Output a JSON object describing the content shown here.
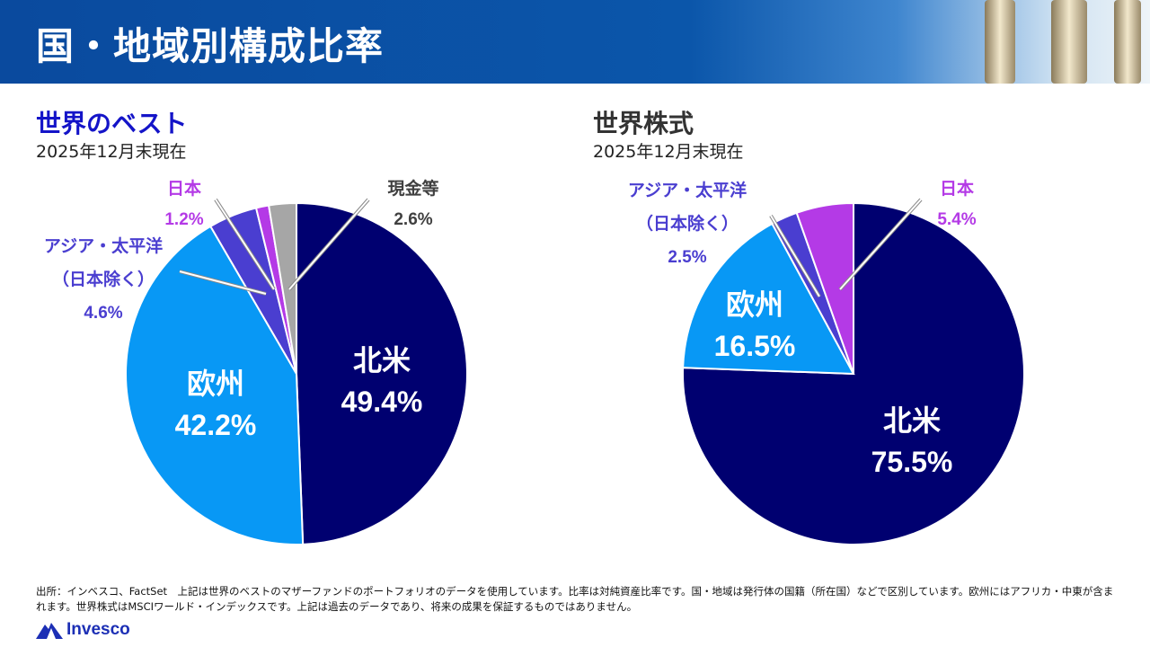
{
  "header": {
    "title": "国・地域別構成比率"
  },
  "left": {
    "title": "世界のベスト",
    "date": "2025年12月末現在"
  },
  "right": {
    "title": "世界株式",
    "date": "2025年12月末現在"
  },
  "colors": {
    "north_america": "#000070",
    "europe": "#0898f5",
    "asia_pacific": "#4a3ed0",
    "japan": "#b43ae6",
    "cash": "#a6a6a6",
    "title_blue": "#1414c8"
  },
  "chart_data": [
    {
      "type": "pie",
      "title": "世界のベスト",
      "start": "top",
      "direction": "clockwise",
      "slices": [
        {
          "label": "北米",
          "value": 49.4,
          "display": "49.4%",
          "color": "#000070"
        },
        {
          "label": "欧州",
          "value": 42.2,
          "display": "42.2%",
          "color": "#0898f5"
        },
        {
          "label": "アジア・太平洋（日本除く）",
          "label_lines": [
            "アジア・太平洋",
            "（日本除く）"
          ],
          "value": 4.6,
          "display": "4.6%",
          "color": "#4a3ed0"
        },
        {
          "label": "日本",
          "value": 1.2,
          "display": "1.2%",
          "color": "#b43ae6"
        },
        {
          "label": "現金等",
          "value": 2.6,
          "display": "2.6%",
          "color": "#a6a6a6"
        }
      ]
    },
    {
      "type": "pie",
      "title": "世界株式",
      "start": "top",
      "direction": "clockwise",
      "slices": [
        {
          "label": "北米",
          "value": 75.5,
          "display": "75.5%",
          "color": "#000070"
        },
        {
          "label": "欧州",
          "value": 16.5,
          "display": "16.5%",
          "color": "#0898f5"
        },
        {
          "label": "アジア・太平洋（日本除く）",
          "label_lines": [
            "アジア・太平洋",
            "（日本除く）"
          ],
          "value": 2.5,
          "display": "2.5%",
          "color": "#4a3ed0"
        },
        {
          "label": "日本",
          "value": 5.4,
          "display": "5.4%",
          "color": "#b43ae6"
        }
      ]
    }
  ],
  "footer": {
    "text": "出所：インベスコ、FactSet　上記は世界のベストのマザーファンドのポートフォリオのデータを使用しています。比率は対純資産比率です。国・地域は発行体の国籍（所在国）などで区別しています。欧州にはアフリカ・中東が含まれます。世界株式はMSCIワールド・インデックスです。上記は過去のデータであり、将来の成果を保証するものではありません。"
  },
  "logo": {
    "text": "Invesco"
  }
}
